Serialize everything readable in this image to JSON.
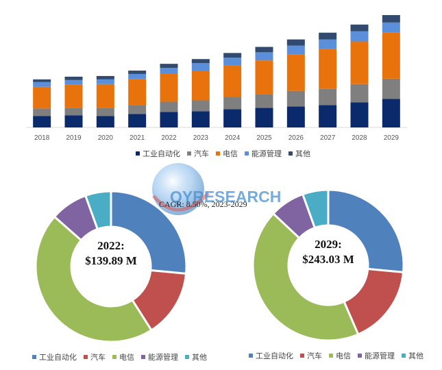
{
  "colors": {
    "工业自动化": "#0b2a6b",
    "汽车": "#7f7f7f",
    "电信": "#e8720c",
    "能源管理": "#5b8fd9",
    "其他": "#314a6e",
    "donut": [
      "#4f81bd",
      "#c0504d",
      "#9bbb59",
      "#8064a2",
      "#4bacc6"
    ]
  },
  "chart_data": [
    {
      "type": "bar",
      "stacked": true,
      "categories": [
        "2018",
        "2019",
        "2020",
        "2021",
        "2022",
        "2023",
        "2024",
        "2025",
        "2026",
        "2027",
        "2028",
        "2029"
      ],
      "series": [
        {
          "name": "工业自动化",
          "values": [
            17,
            18,
            17,
            20,
            23,
            24,
            27,
            29,
            31,
            33,
            37,
            42
          ]
        },
        {
          "name": "汽车",
          "values": [
            11,
            11,
            12,
            13,
            15,
            16,
            18,
            20,
            23,
            24,
            27,
            30
          ]
        },
        {
          "name": "电信",
          "values": [
            32,
            34,
            35,
            38,
            41,
            44,
            47,
            50,
            54,
            59,
            63,
            68
          ]
        },
        {
          "name": "能源管理",
          "values": [
            7,
            7,
            7,
            8,
            9,
            11,
            11,
            12,
            13,
            14,
            15,
            15
          ]
        },
        {
          "name": "其他",
          "values": [
            4,
            5,
            5,
            5,
            6,
            6,
            7,
            8,
            9,
            10,
            10,
            11
          ]
        }
      ],
      "grid": false,
      "legend": "bottom"
    },
    {
      "type": "pie",
      "subtype": "donut",
      "center_label_line1": "2022:",
      "center_label_line2": "$139.89 M",
      "labels": [
        "工业自动化",
        "汽车",
        "电信",
        "能源管理",
        "其他"
      ],
      "values": [
        26.5,
        14.5,
        45.5,
        8.0,
        5.5
      ],
      "legend": "bottom"
    },
    {
      "type": "pie",
      "subtype": "donut",
      "center_label_line1": "2029:",
      "center_label_line2": "$243.03 M",
      "labels": [
        "工业自动化",
        "汽车",
        "电信",
        "能源管理",
        "其他"
      ],
      "values": [
        26.5,
        17.0,
        43.5,
        7.5,
        5.5
      ],
      "legend": "bottom"
    }
  ],
  "cagr_text": "CAGR: 8.50%, 2023-2029",
  "logo_text": "QYRESEARCH"
}
